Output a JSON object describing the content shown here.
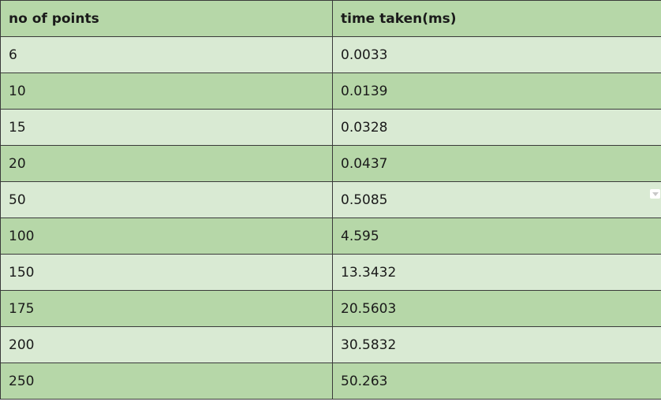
{
  "table": {
    "headers": [
      "no of points",
      "time taken(ms)"
    ],
    "rows": [
      [
        "6",
        "0.0033"
      ],
      [
        "10",
        "0.0139"
      ],
      [
        "15",
        "0.0328"
      ],
      [
        "20",
        "0.0437"
      ],
      [
        "50",
        "0.5085"
      ],
      [
        "100",
        "4.595"
      ],
      [
        "150",
        "13.3432"
      ],
      [
        "175",
        "20.5603"
      ],
      [
        "200",
        "30.5832"
      ],
      [
        "250",
        "50.263"
      ]
    ]
  },
  "colors": {
    "header_bg": "#b6d7a8",
    "row_light": "#d9ead3",
    "row_dark": "#b6d7a8",
    "border": "#3a3a3a"
  },
  "icons": {
    "dropdown": "chevron-down-icon"
  }
}
